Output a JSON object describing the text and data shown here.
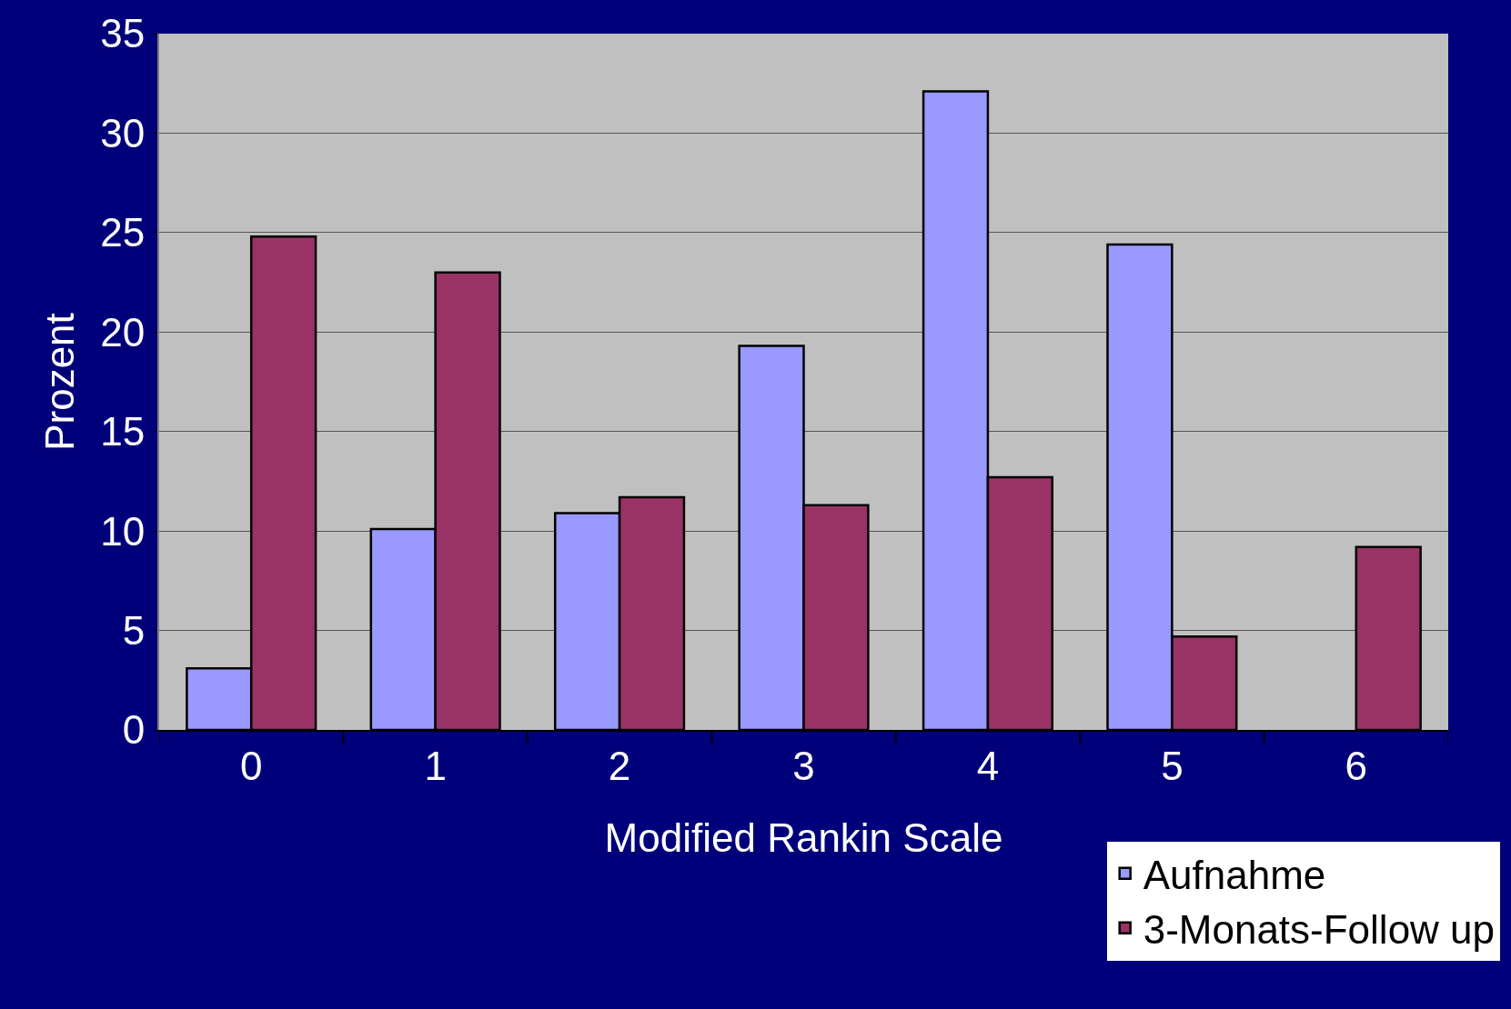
{
  "chart_data": {
    "type": "bar",
    "xlabel": "Modified Rankin Scale",
    "ylabel": "Prozent",
    "categories": [
      "0",
      "1",
      "2",
      "3",
      "4",
      "5",
      "6"
    ],
    "series": [
      {
        "name": "Aufnahme",
        "color": "#9999ff",
        "values": [
          3.1,
          10.1,
          10.9,
          19.3,
          32.1,
          24.4,
          null
        ]
      },
      {
        "name": "3-Monats-Follow up",
        "color": "#993366",
        "values": [
          24.8,
          23.0,
          11.7,
          11.3,
          12.7,
          4.7,
          9.2
        ]
      }
    ],
    "ylim": [
      0,
      35
    ],
    "yticks": [
      0,
      5,
      10,
      15,
      20,
      25,
      30,
      35
    ],
    "grid": "y",
    "legend": "bottom right"
  }
}
